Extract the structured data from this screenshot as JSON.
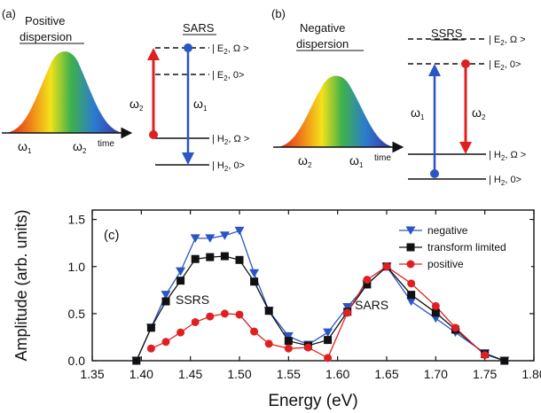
{
  "panels": {
    "a": {
      "label": "(a)",
      "title": [
        "Positive",
        "dispersion"
      ],
      "omega1": "ω1",
      "omega2": "ω2",
      "time": "time",
      "process": "SARS",
      "levels": [
        "| E2, Ω >",
        "| E2, 0>",
        "| H2, Ω >",
        "| H2, 0>"
      ],
      "arrow_up": "ω2",
      "arrow_down": "ω1"
    },
    "b": {
      "label": "(b)",
      "title": [
        "Negative",
        "dispersion"
      ],
      "omega_left": "ω2",
      "omega_right": "ω1",
      "time": "time",
      "process": "SSRS",
      "levels": [
        "| E2, Ω >",
        "| E2, 0>",
        "| H2, Ω >",
        "| H2, 0>"
      ],
      "arrow_up": "ω1",
      "arrow_down": "ω2"
    }
  },
  "colors": {
    "negative": "#2a55c4",
    "transform_limited": "#111111",
    "positive": "#e02020"
  },
  "chart_data": {
    "type": "line",
    "panel_label": "(c)",
    "xlabel": "Energy (eV)",
    "ylabel": "Amplitude (arb. units)",
    "xlim": [
      1.35,
      1.8
    ],
    "ylim": [
      0,
      1.6
    ],
    "xticks": [
      "1.35",
      "1.40",
      "1.45",
      "1.50",
      "1.55",
      "1.60",
      "1.65",
      "1.70",
      "1.75",
      "1.80"
    ],
    "yticks": [
      "0.0",
      "0.5",
      "1.0",
      "1.5"
    ],
    "annotations": [
      "SSRS",
      "SARS"
    ],
    "legend_position": "top-right",
    "series": [
      {
        "name": "negative",
        "marker": "triangle-down",
        "color": "#2a55c4",
        "x": [
          1.395,
          1.41,
          1.425,
          1.44,
          1.455,
          1.47,
          1.485,
          1.5,
          1.515,
          1.53,
          1.55,
          1.57,
          1.59,
          1.61,
          1.63,
          1.65,
          1.675,
          1.7,
          1.72,
          1.75,
          1.77
        ],
        "y": [
          0.0,
          0.35,
          0.7,
          0.95,
          1.3,
          1.3,
          1.33,
          1.38,
          0.93,
          0.53,
          0.26,
          0.17,
          0.3,
          0.57,
          0.81,
          1.0,
          0.63,
          0.45,
          0.3,
          0.08,
          0.0
        ]
      },
      {
        "name": "transform limited",
        "marker": "square",
        "color": "#111111",
        "x": [
          1.395,
          1.41,
          1.425,
          1.44,
          1.455,
          1.47,
          1.485,
          1.5,
          1.515,
          1.53,
          1.55,
          1.57,
          1.59,
          1.61,
          1.63,
          1.65,
          1.675,
          1.7,
          1.72,
          1.75,
          1.77
        ],
        "y": [
          0.0,
          0.35,
          0.63,
          0.85,
          1.08,
          1.1,
          1.11,
          1.07,
          0.84,
          0.53,
          0.21,
          0.16,
          0.22,
          0.52,
          0.81,
          1.0,
          0.7,
          0.51,
          0.33,
          0.07,
          0.0
        ]
      },
      {
        "name": "positive",
        "marker": "circle",
        "color": "#e02020",
        "x": [
          1.41,
          1.425,
          1.44,
          1.455,
          1.47,
          1.485,
          1.5,
          1.515,
          1.53,
          1.55,
          1.57,
          1.59,
          1.61,
          1.63,
          1.65,
          1.675,
          1.7,
          1.72,
          1.75
        ],
        "y": [
          0.13,
          0.2,
          0.3,
          0.41,
          0.47,
          0.5,
          0.49,
          0.31,
          0.18,
          0.13,
          0.14,
          0.03,
          0.51,
          0.86,
          1.0,
          0.82,
          0.58,
          0.35,
          0.06
        ]
      }
    ]
  }
}
